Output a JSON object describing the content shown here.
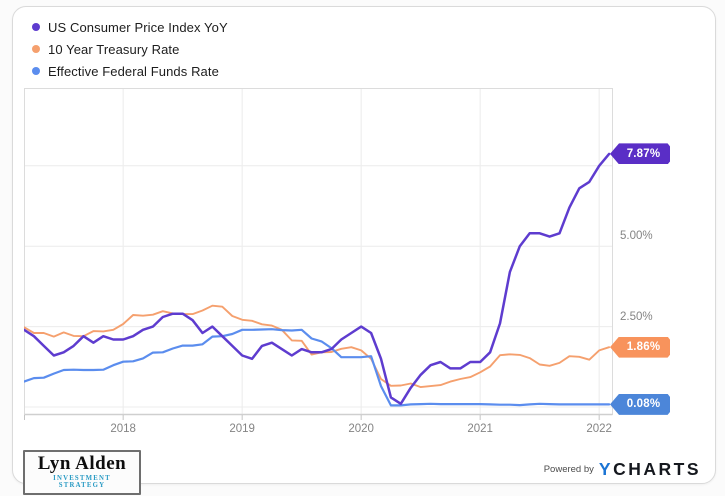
{
  "chart_data": {
    "type": "line",
    "x_start": "2017-03",
    "x_interval": "monthly",
    "x_tick_labels": [
      "2018",
      "2019",
      "2020",
      "2021",
      "2022"
    ],
    "y_tick_labels": [
      "2.50%",
      "5.00%"
    ],
    "y_tick_values": [
      2.5,
      5.0
    ],
    "grid_y_values": [
      0,
      2.5,
      5.0,
      7.5
    ],
    "ylim": [
      -0.45,
      9.9
    ],
    "legend_position": "top-left",
    "series": [
      {
        "name": "US Consumer Price Index YoY",
        "color": "#5e3ccf",
        "badge_color": "#5a2ec6",
        "end_label": "7.87%",
        "values": [
          2.4,
          2.2,
          1.9,
          1.6,
          1.7,
          1.9,
          2.2,
          2.0,
          2.2,
          2.1,
          2.1,
          2.2,
          2.4,
          2.5,
          2.8,
          2.9,
          2.9,
          2.7,
          2.3,
          2.5,
          2.2,
          1.9,
          1.6,
          1.5,
          1.9,
          2.0,
          1.8,
          1.6,
          1.8,
          1.7,
          1.7,
          1.8,
          2.1,
          2.3,
          2.5,
          2.3,
          1.5,
          0.3,
          0.1,
          0.6,
          1.0,
          1.3,
          1.4,
          1.2,
          1.2,
          1.4,
          1.4,
          1.7,
          2.6,
          4.2,
          5.0,
          5.4,
          5.4,
          5.3,
          5.4,
          6.2,
          6.8,
          7.0,
          7.5,
          7.87
        ]
      },
      {
        "name": "10 Year Treasury Rate",
        "color": "#f5a06e",
        "badge_color": "#f8935c",
        "end_label": "1.86%",
        "values": [
          2.48,
          2.3,
          2.3,
          2.19,
          2.32,
          2.21,
          2.2,
          2.36,
          2.35,
          2.4,
          2.58,
          2.86,
          2.84,
          2.87,
          2.98,
          2.91,
          2.89,
          2.89,
          3.0,
          3.15,
          3.12,
          2.83,
          2.71,
          2.68,
          2.57,
          2.53,
          2.4,
          2.07,
          2.06,
          1.63,
          1.7,
          1.71,
          1.81,
          1.86,
          1.76,
          1.5,
          0.87,
          0.66,
          0.67,
          0.73,
          0.62,
          0.65,
          0.68,
          0.79,
          0.87,
          0.93,
          1.08,
          1.26,
          1.61,
          1.64,
          1.62,
          1.52,
          1.32,
          1.28,
          1.37,
          1.58,
          1.56,
          1.47,
          1.76,
          1.86
        ]
      },
      {
        "name": "Effective Federal Funds Rate",
        "color": "#5b8dee",
        "badge_color": "#4c86d9",
        "end_label": "0.08%",
        "values": [
          0.79,
          0.9,
          0.91,
          1.04,
          1.15,
          1.16,
          1.15,
          1.15,
          1.16,
          1.3,
          1.41,
          1.42,
          1.51,
          1.69,
          1.7,
          1.82,
          1.91,
          1.91,
          1.95,
          2.19,
          2.2,
          2.27,
          2.4,
          2.4,
          2.41,
          2.42,
          2.39,
          2.38,
          2.4,
          2.13,
          2.04,
          1.83,
          1.55,
          1.55,
          1.55,
          1.58,
          0.65,
          0.05,
          0.05,
          0.08,
          0.09,
          0.1,
          0.09,
          0.09,
          0.09,
          0.09,
          0.09,
          0.08,
          0.07,
          0.07,
          0.06,
          0.08,
          0.1,
          0.09,
          0.08,
          0.08,
          0.08,
          0.08,
          0.08,
          0.08
        ]
      }
    ]
  },
  "footer": {
    "logo_name": "Lyn Alden",
    "logo_subtitle": "INVESTMENT STRATEGY",
    "powered_by": "Powered by",
    "ycharts_y": "Y",
    "ycharts_rest": "CHARTS"
  }
}
